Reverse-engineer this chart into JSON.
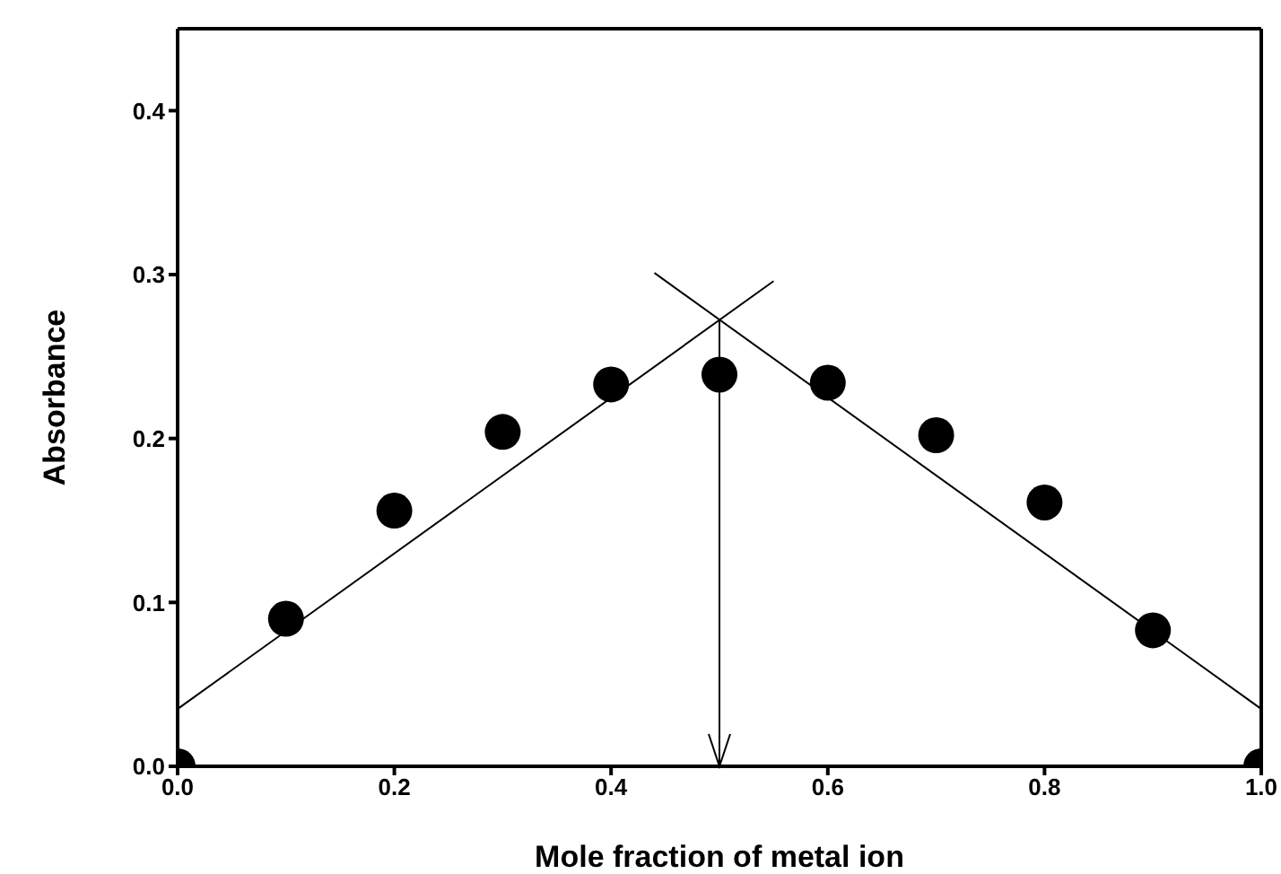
{
  "chart_data": {
    "type": "scatter",
    "xlabel": "Mole fraction of metal ion",
    "ylabel": "Absorbance",
    "xlim": [
      0,
      1
    ],
    "ylim": [
      0,
      0.45
    ],
    "xticks": [
      {
        "value": 0,
        "label": "0.0"
      },
      {
        "value": 0.2,
        "label": "0.2"
      },
      {
        "value": 0.4,
        "label": "0.4"
      },
      {
        "value": 0.6,
        "label": "0.6"
      },
      {
        "value": 0.8,
        "label": "0.8"
      },
      {
        "value": 1,
        "label": "1.0"
      }
    ],
    "yticks": [
      {
        "value": 0,
        "label": "0.0"
      },
      {
        "value": 0.1,
        "label": "0.1"
      },
      {
        "value": 0.2,
        "label": "0.2"
      },
      {
        "value": 0.3,
        "label": "0.3"
      },
      {
        "value": 0.4,
        "label": "0.4"
      }
    ],
    "grid": false,
    "series": [
      {
        "marker": "circle",
        "color": "#000000",
        "x": [
          0,
          0.1,
          0.2,
          0.3,
          0.4,
          0.5,
          0.6,
          0.7,
          0.8,
          0.9,
          1.0
        ],
        "values": [
          0,
          0.09,
          0.156,
          0.204,
          0.233,
          0.239,
          0.234,
          0.202,
          0.161,
          0.083,
          0
        ]
      },
      {
        "type": "line",
        "marker": "none",
        "color": "#000000",
        "x": [
          0,
          0.55
        ],
        "values": [
          0.035,
          0.296
        ]
      },
      {
        "type": "line",
        "marker": "none",
        "color": "#000000",
        "x": [
          0.44,
          1.0
        ],
        "values": [
          0.301,
          0.035
        ]
      }
    ],
    "ref_lines": [
      {
        "axis": "x",
        "value": 0.5,
        "color": "#000000"
      }
    ]
  }
}
